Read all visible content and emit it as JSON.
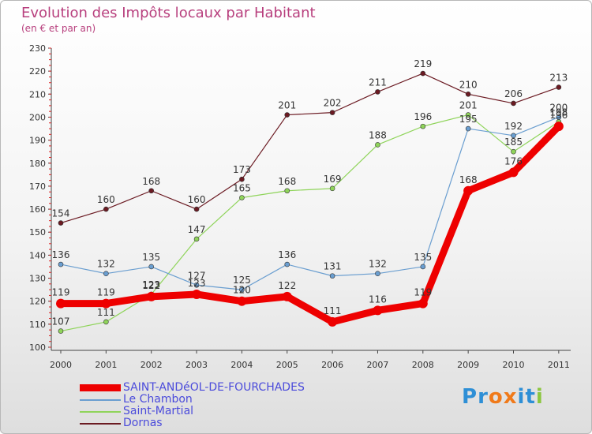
{
  "title": "Evolution des Impôts locaux par Habitant",
  "subtitle": "(en € et par an)",
  "logo": {
    "text": "Proxiti",
    "letters": [
      {
        "char": "P",
        "color": "#2e8fd6"
      },
      {
        "char": "r",
        "color": "#2e8fd6"
      },
      {
        "char": "o",
        "color": "#f07a1a"
      },
      {
        "char": "x",
        "color": "#f07a1a"
      },
      {
        "char": "i",
        "color": "#2e8fd6"
      },
      {
        "char": "t",
        "color": "#2e8fd6"
      },
      {
        "char": "i",
        "color": "#8cc63f"
      }
    ]
  },
  "chart_data": {
    "type": "line",
    "title": "Evolution des Impôts locaux par Habitant",
    "subtitle": "(en € et par an)",
    "xlabel": "",
    "ylabel": "",
    "x": [
      "2000",
      "2001",
      "2002",
      "2003",
      "2004",
      "2005",
      "2006",
      "2007",
      "2008",
      "2009",
      "2010",
      "2011"
    ],
    "ylim": [
      100,
      230
    ],
    "yticks": [
      100,
      110,
      120,
      130,
      140,
      150,
      160,
      170,
      180,
      190,
      200,
      210,
      220,
      230
    ],
    "grid": false,
    "legend_position": "bottom-left",
    "series": [
      {
        "name": "Dornas",
        "color": "#6b1a22",
        "values": [
          154,
          160,
          168,
          160,
          173,
          201,
          202,
          211,
          219,
          210,
          206,
          213
        ]
      },
      {
        "name": "Saint-Martial",
        "color": "#8fd45a",
        "values": [
          107,
          111,
          123,
          147,
          165,
          168,
          169,
          188,
          196,
          201,
          185,
          198
        ]
      },
      {
        "name": "Le Chambon",
        "color": "#6a9ed0",
        "values": [
          136,
          132,
          135,
          127,
          125,
          136,
          131,
          132,
          135,
          195,
          192,
          200
        ]
      },
      {
        "name": "SAINT-ANDéOL-DE-FOURCHADES",
        "color": "#ee0000",
        "values": [
          119,
          119,
          122,
          123,
          120,
          122,
          111,
          116,
          119,
          168,
          176,
          196
        ]
      }
    ],
    "legend_order": [
      "SAINT-ANDéOL-DE-FOURCHADES",
      "Le Chambon",
      "Saint-Martial",
      "Dornas"
    ]
  }
}
